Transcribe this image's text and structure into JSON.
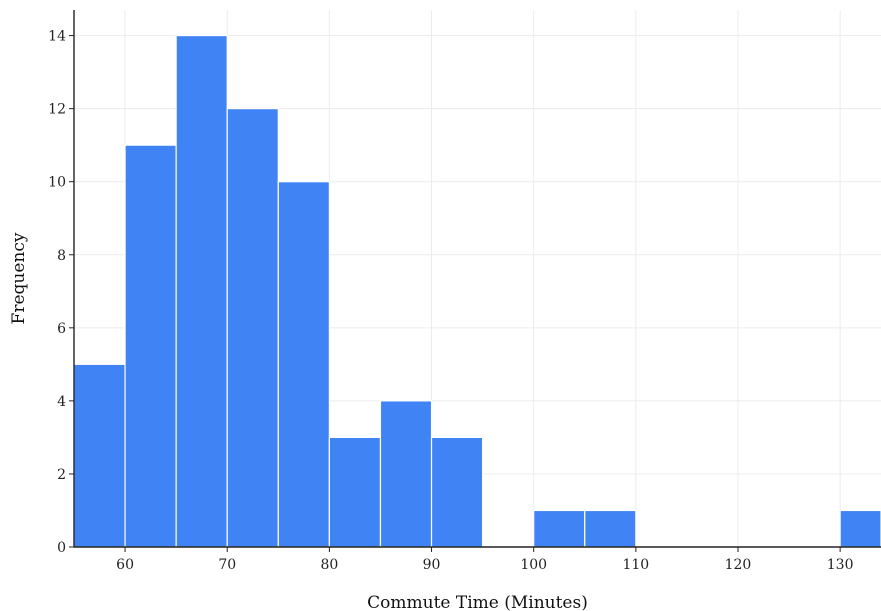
{
  "chart_data": {
    "type": "bar",
    "title": "",
    "xlabel": "Commute Time (Minutes)",
    "ylabel": "Frequency",
    "bin_width": 5,
    "bins": [
      {
        "start": 55,
        "end": 60,
        "count": 5
      },
      {
        "start": 60,
        "end": 65,
        "count": 11
      },
      {
        "start": 65,
        "end": 70,
        "count": 14
      },
      {
        "start": 70,
        "end": 75,
        "count": 12
      },
      {
        "start": 75,
        "end": 80,
        "count": 10
      },
      {
        "start": 80,
        "end": 85,
        "count": 3
      },
      {
        "start": 85,
        "end": 90,
        "count": 4
      },
      {
        "start": 90,
        "end": 95,
        "count": 3
      },
      {
        "start": 95,
        "end": 100,
        "count": 0
      },
      {
        "start": 100,
        "end": 105,
        "count": 1
      },
      {
        "start": 105,
        "end": 110,
        "count": 1
      },
      {
        "start": 110,
        "end": 115,
        "count": 0
      },
      {
        "start": 115,
        "end": 120,
        "count": 0
      },
      {
        "start": 120,
        "end": 125,
        "count": 0
      },
      {
        "start": 125,
        "end": 130,
        "count": 0
      },
      {
        "start": 130,
        "end": 135,
        "count": 1
      }
    ],
    "xlim": [
      55,
      134
    ],
    "ylim": [
      0,
      14.7
    ],
    "xticks": [
      60,
      70,
      80,
      90,
      100,
      110,
      120,
      130
    ],
    "yticks": [
      0,
      2,
      4,
      6,
      8,
      10,
      12,
      14
    ],
    "grid": true,
    "bar_color": "#3f83f4",
    "grid_color": "#ececec"
  }
}
